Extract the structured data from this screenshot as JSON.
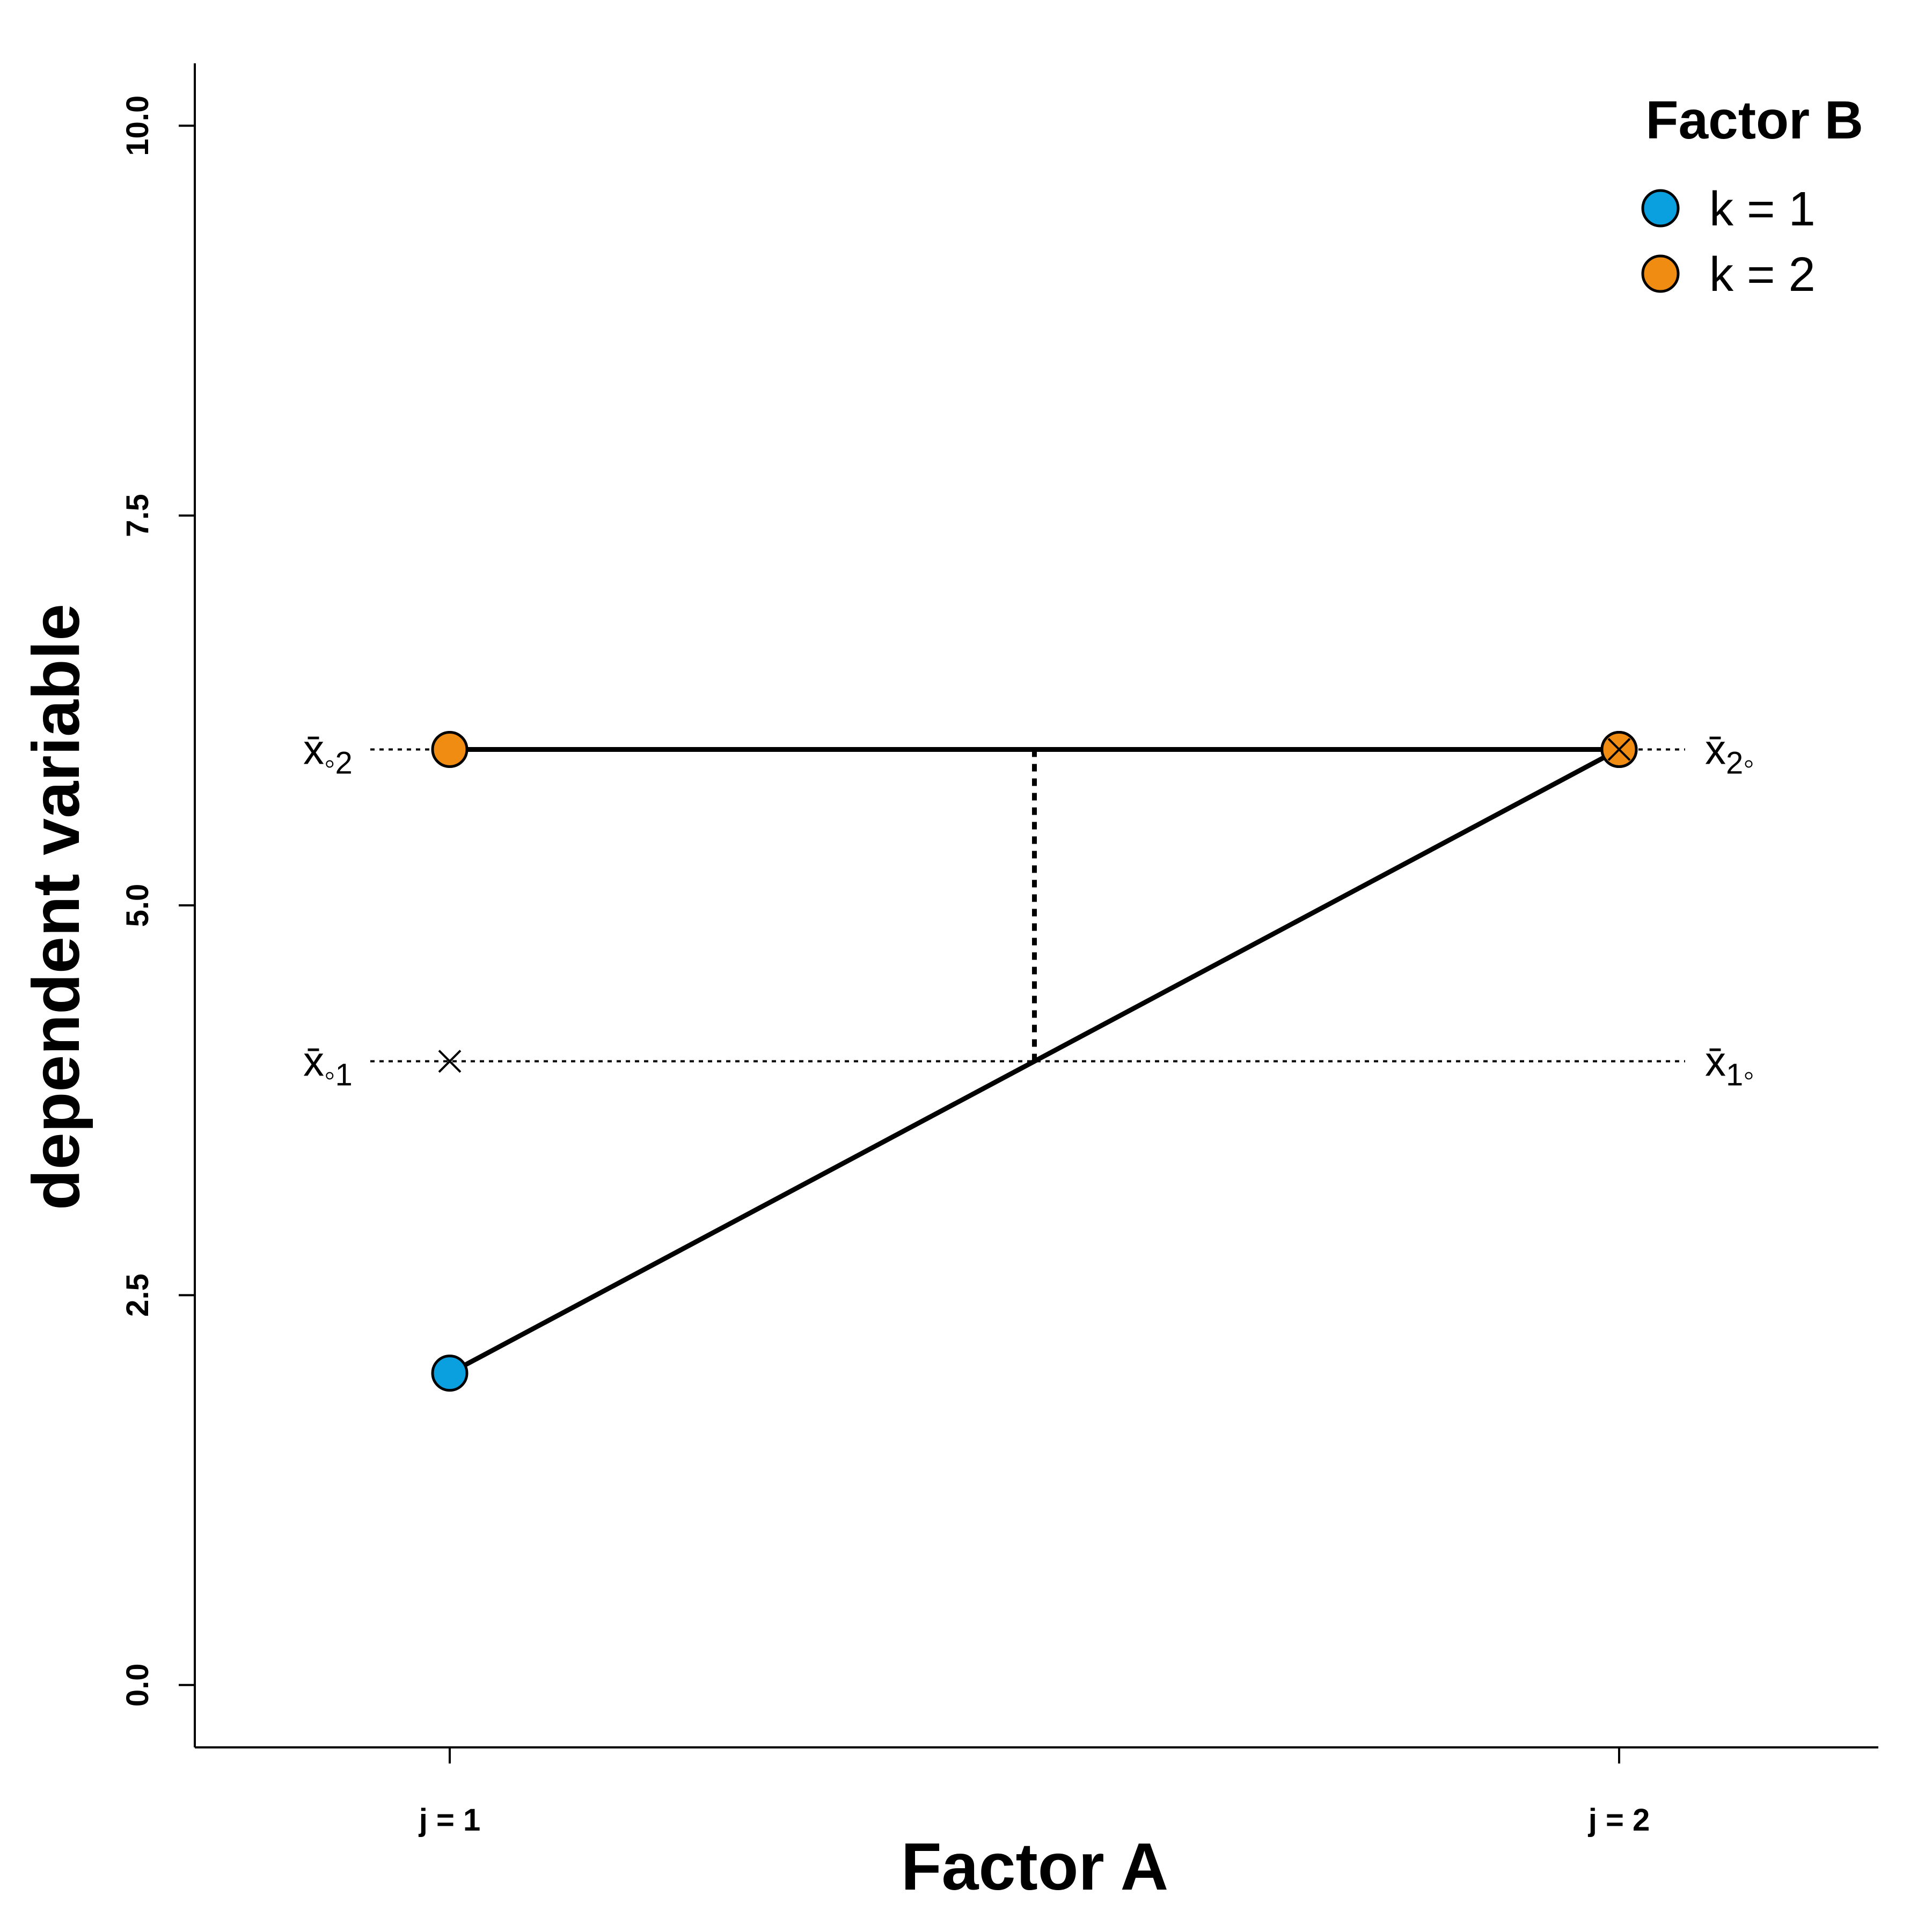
{
  "chart_data": {
    "type": "line",
    "xlabel": "Factor A",
    "ylabel": "dependent variable",
    "categories": [
      "j = 1",
      "j = 2"
    ],
    "ylim": [
      -0.4,
      10.4
    ],
    "yticks": [
      "0.0",
      "2.5",
      "5.0",
      "7.5",
      "10.0"
    ],
    "ytick_values": [
      0,
      2.5,
      5,
      7.5,
      10
    ],
    "grid": false,
    "legend": {
      "title": "Factor B",
      "position": "top-right",
      "entries": [
        {
          "label": "k = 1",
          "color": "#0aa0e0"
        },
        {
          "label": "k = 2",
          "color": "#f08c12"
        }
      ]
    },
    "series": [
      {
        "name": "k = 1",
        "color": "#0aa0e0",
        "values": [
          2,
          6
        ]
      },
      {
        "name": "k = 2",
        "color": "#f08c12",
        "values": [
          6,
          6
        ]
      }
    ],
    "marginal_means": {
      "factor_b": [
        {
          "label": "x̄",
          "sub": "◦1",
          "value": 4
        },
        {
          "label": "x̄",
          "sub": "◦2",
          "value": 6
        }
      ],
      "factor_a": [
        {
          "label": "x̄",
          "sub": "1◦",
          "value": 4
        },
        {
          "label": "x̄",
          "sub": "2◦",
          "value": 6
        }
      ]
    },
    "grand_midpoint": {
      "x": 1.5,
      "y_from": 4,
      "y_to": 6
    }
  }
}
